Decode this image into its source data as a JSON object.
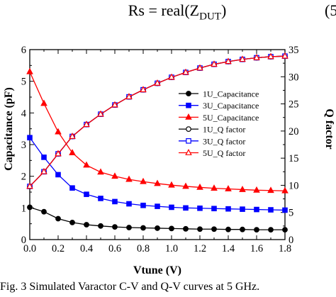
{
  "equation": {
    "lhs": "Rs = real(Z",
    "subscript": "DUT",
    "rhs": ")",
    "number": "(5"
  },
  "caption": "Fig. 3   Simulated Varactor C-V and Q-V curves at 5 GHz.",
  "chart_data": {
    "type": "line",
    "xlabel": "Vtune (V)",
    "ylabel": "Capacitance (pF)",
    "y2label": "Q factor",
    "xlim": [
      0.0,
      1.8
    ],
    "ylim": [
      0,
      6
    ],
    "y2lim": [
      0,
      35
    ],
    "xticks": [
      "0.0",
      "0.2",
      "0.4",
      "0.6",
      "0.8",
      "1.0",
      "1.2",
      "1.4",
      "1.6",
      "1.8"
    ],
    "yticks": [
      "0",
      "1",
      "2",
      "3",
      "4",
      "5",
      "6"
    ],
    "y2ticks": [
      "0",
      "5",
      "10",
      "15",
      "20",
      "25",
      "30",
      "35"
    ],
    "grid": false,
    "legend_position": "right",
    "x": [
      0.0,
      0.1,
      0.2,
      0.3,
      0.4,
      0.5,
      0.6,
      0.7,
      0.8,
      0.9,
      1.0,
      1.1,
      1.2,
      1.3,
      1.4,
      1.5,
      1.6,
      1.7,
      1.8
    ],
    "series": [
      {
        "name": "1U_Capacitance",
        "axis": "left",
        "marker": "circle",
        "filled": true,
        "color": "#000000",
        "values": [
          1.02,
          0.88,
          0.66,
          0.54,
          0.47,
          0.43,
          0.4,
          0.38,
          0.37,
          0.36,
          0.35,
          0.34,
          0.33,
          0.33,
          0.32,
          0.32,
          0.31,
          0.31,
          0.31
        ]
      },
      {
        "name": "3U_Capacitance",
        "axis": "left",
        "marker": "square",
        "filled": true,
        "color": "#0000ff",
        "values": [
          3.22,
          2.6,
          2.05,
          1.63,
          1.43,
          1.3,
          1.2,
          1.13,
          1.08,
          1.05,
          1.02,
          1.0,
          0.99,
          0.98,
          0.97,
          0.96,
          0.95,
          0.94,
          0.93
        ]
      },
      {
        "name": "5U_Capacitance",
        "axis": "left",
        "marker": "triangle",
        "filled": true,
        "color": "#ff0000",
        "values": [
          5.3,
          4.3,
          3.4,
          2.74,
          2.35,
          2.13,
          2.0,
          1.9,
          1.83,
          1.77,
          1.72,
          1.68,
          1.65,
          1.62,
          1.6,
          1.58,
          1.56,
          1.55,
          1.54
        ]
      },
      {
        "name": "1U_Q factor",
        "axis": "right",
        "marker": "circle",
        "filled": false,
        "color": "#000000",
        "values": [
          9.8,
          12.5,
          15.8,
          19.0,
          21.2,
          23.1,
          24.8,
          26.3,
          27.6,
          28.8,
          29.9,
          30.8,
          31.6,
          32.3,
          32.8,
          33.2,
          33.5,
          33.7,
          33.8
        ]
      },
      {
        "name": "3U_Q factor",
        "axis": "right",
        "marker": "square",
        "filled": false,
        "color": "#0000ff",
        "values": [
          9.8,
          12.5,
          15.8,
          19.0,
          21.2,
          23.1,
          24.8,
          26.3,
          27.6,
          28.8,
          29.9,
          30.8,
          31.6,
          32.3,
          32.8,
          33.2,
          33.5,
          33.7,
          33.8
        ]
      },
      {
        "name": "5U_Q factor",
        "axis": "right",
        "marker": "triangle",
        "filled": false,
        "color": "#ff0000",
        "values": [
          9.8,
          12.5,
          15.8,
          19.0,
          21.2,
          23.1,
          24.8,
          26.3,
          27.6,
          28.8,
          29.9,
          30.8,
          31.6,
          32.3,
          32.8,
          33.2,
          33.5,
          33.7,
          33.8
        ]
      }
    ]
  }
}
